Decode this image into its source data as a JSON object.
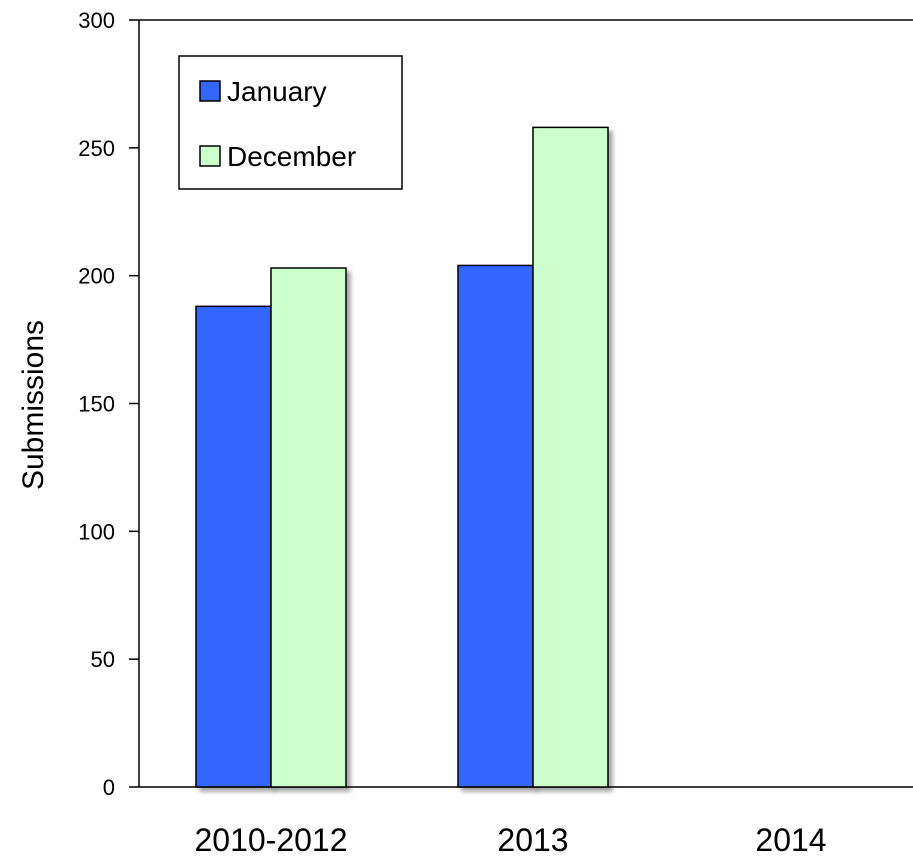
{
  "chart_data": {
    "type": "bar",
    "title": "",
    "xlabel": "",
    "ylabel": "Submissions",
    "ylim": [
      0,
      300
    ],
    "yticks": [
      0,
      50,
      100,
      150,
      200,
      250,
      300
    ],
    "categories": [
      "2010-2012",
      "2013",
      "2014"
    ],
    "series": [
      {
        "name": "January",
        "values": [
          188,
          204,
          null
        ],
        "color": "#3366ff"
      },
      {
        "name": "December",
        "values": [
          203,
          258,
          null
        ],
        "color": "#ccffcc"
      }
    ],
    "legend_position": "top-left",
    "grid": false
  }
}
